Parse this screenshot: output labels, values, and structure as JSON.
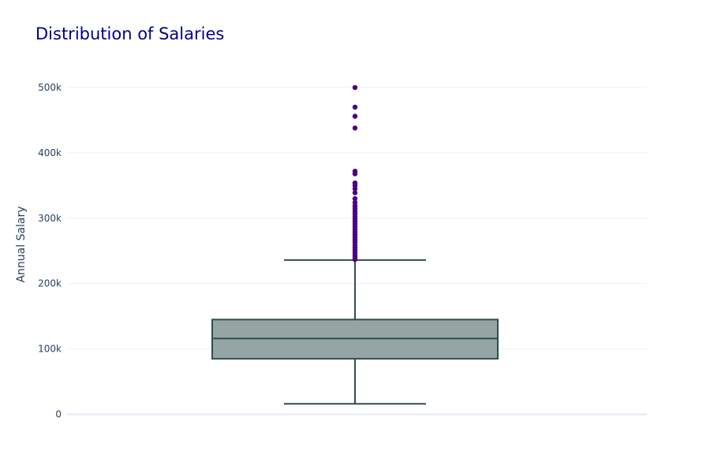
{
  "chart_data": {
    "type": "box",
    "title": "Distribution of Salaries",
    "xlabel": "",
    "ylabel": "Annual Salary",
    "ylim": [
      -15000,
      535000
    ],
    "y_ticks": [
      {
        "value": 0,
        "label": "0"
      },
      {
        "value": 100000,
        "label": "100k"
      },
      {
        "value": 200000,
        "label": "200k"
      },
      {
        "value": 300000,
        "label": "300k"
      },
      {
        "value": 400000,
        "label": "400k"
      },
      {
        "value": 500000,
        "label": "500k"
      }
    ],
    "grid": true,
    "legend": "none",
    "box": {
      "min": 16000,
      "q1": 85000,
      "median": 116000,
      "q3": 145000,
      "upper_fence": 236000,
      "outliers": [
        500000,
        470000,
        456000,
        438000,
        372000,
        368000,
        354000,
        350000,
        345000,
        339000,
        330000,
        324000,
        319000,
        315000,
        311000,
        307000,
        303000,
        299000,
        295000,
        291000,
        287000,
        283000,
        279000,
        275000,
        271000,
        267000,
        263000,
        259000,
        255000,
        251000,
        247000,
        243000,
        240000,
        237000
      ]
    },
    "colors": {
      "box_fill": "#95a5a4",
      "box_line": "#2f4f4f",
      "outlier": "#4b0082",
      "title": "#00008b"
    }
  }
}
